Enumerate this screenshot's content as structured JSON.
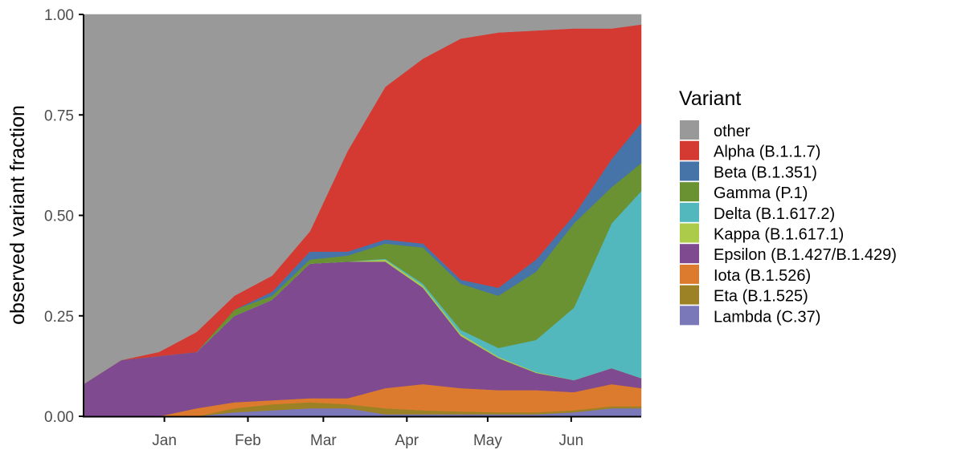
{
  "chart_data": {
    "type": "area",
    "stacked": true,
    "title": "",
    "xlabel": "",
    "ylabel": "observed variant fraction",
    "ylim": [
      0,
      1
    ],
    "xlim": [
      "2020-12-02",
      "2021-06-27"
    ],
    "yticks": [
      "0.00",
      "0.25",
      "0.50",
      "0.75",
      "1.00"
    ],
    "xticks": [
      {
        "date": "2021-01-01",
        "label": "Jan"
      },
      {
        "date": "2021-02-01",
        "label": "Feb"
      },
      {
        "date": "2021-03-01",
        "label": "Mar"
      },
      {
        "date": "2021-04-01",
        "label": "Apr"
      },
      {
        "date": "2021-05-01",
        "label": "May"
      },
      {
        "date": "2021-06-01",
        "label": "Jun"
      }
    ],
    "grid": false,
    "legend": {
      "title": "Variant",
      "position": "right"
    },
    "x": [
      "2020-12-02",
      "2020-12-16",
      "2020-12-30",
      "2021-01-13",
      "2021-01-27",
      "2021-02-10",
      "2021-02-24",
      "2021-03-10",
      "2021-03-24",
      "2021-04-07",
      "2021-04-21",
      "2021-05-05",
      "2021-05-19",
      "2021-06-02",
      "2021-06-16",
      "2021-06-27"
    ],
    "series": [
      {
        "name": "Lambda (C.37)",
        "color": "#7A78B8",
        "values": [
          0,
          0,
          0,
          0,
          0.01,
          0.015,
          0.02,
          0.02,
          0.005,
          0.005,
          0.005,
          0.005,
          0.005,
          0.01,
          0.02,
          0.02
        ]
      },
      {
        "name": "Eta (B.1.525)",
        "color": "#9C8225",
        "values": [
          0,
          0,
          0,
          0,
          0.01,
          0.015,
          0.015,
          0.01,
          0.015,
          0.01,
          0.007,
          0.005,
          0.005,
          0.005,
          0.005,
          0.005
        ]
      },
      {
        "name": "Iota (B.1.526)",
        "color": "#DC7B2E",
        "values": [
          0,
          0,
          0,
          0.02,
          0.015,
          0.01,
          0.01,
          0.015,
          0.05,
          0.065,
          0.058,
          0.055,
          0.055,
          0.045,
          0.055,
          0.045
        ]
      },
      {
        "name": "Epsilon (B.1.427/B.1.429)",
        "color": "#7F4A8F",
        "values": [
          0.08,
          0.14,
          0.15,
          0.14,
          0.215,
          0.25,
          0.335,
          0.34,
          0.315,
          0.24,
          0.13,
          0.08,
          0.043,
          0.03,
          0.04,
          0.025
        ]
      },
      {
        "name": "Kappa (B.1.617.1)",
        "color": "#ADCB4A",
        "values": [
          0,
          0,
          0,
          0,
          0,
          0,
          0,
          0,
          0.005,
          0.005,
          0.005,
          0.003,
          0.002,
          0,
          0,
          0
        ]
      },
      {
        "name": "Delta (B.1.617.2)",
        "color": "#52B8BE",
        "values": [
          0,
          0,
          0,
          0,
          0,
          0,
          0,
          0,
          0.002,
          0.005,
          0.01,
          0.022,
          0.08,
          0.18,
          0.36,
          0.465
        ]
      },
      {
        "name": "Gamma (P.1)",
        "color": "#6A9233",
        "values": [
          0,
          0,
          0,
          0,
          0.015,
          0.01,
          0.01,
          0.015,
          0.038,
          0.09,
          0.115,
          0.13,
          0.17,
          0.21,
          0.09,
          0.07
        ]
      },
      {
        "name": "Beta (B.1.351)",
        "color": "#4673A8",
        "values": [
          0,
          0,
          0,
          0,
          0,
          0.01,
          0.02,
          0.01,
          0.01,
          0.01,
          0.01,
          0.02,
          0.03,
          0.02,
          0.07,
          0.1
        ]
      },
      {
        "name": "Alpha (B.1.1.7)",
        "color": "#D43A32",
        "values": [
          0,
          0,
          0.01,
          0.05,
          0.035,
          0.04,
          0.05,
          0.25,
          0.38,
          0.46,
          0.6,
          0.635,
          0.57,
          0.465,
          0.325,
          0.245
        ]
      },
      {
        "name": "other",
        "color": "#999999",
        "values": "remainder"
      }
    ],
    "legend_order": [
      "other",
      "Alpha (B.1.1.7)",
      "Beta (B.1.351)",
      "Gamma (P.1)",
      "Delta (B.1.617.2)",
      "Kappa (B.1.617.1)",
      "Epsilon (B.1.427/B.1.429)",
      "Iota (B.1.526)",
      "Eta (B.1.525)",
      "Lambda (C.37)"
    ]
  }
}
